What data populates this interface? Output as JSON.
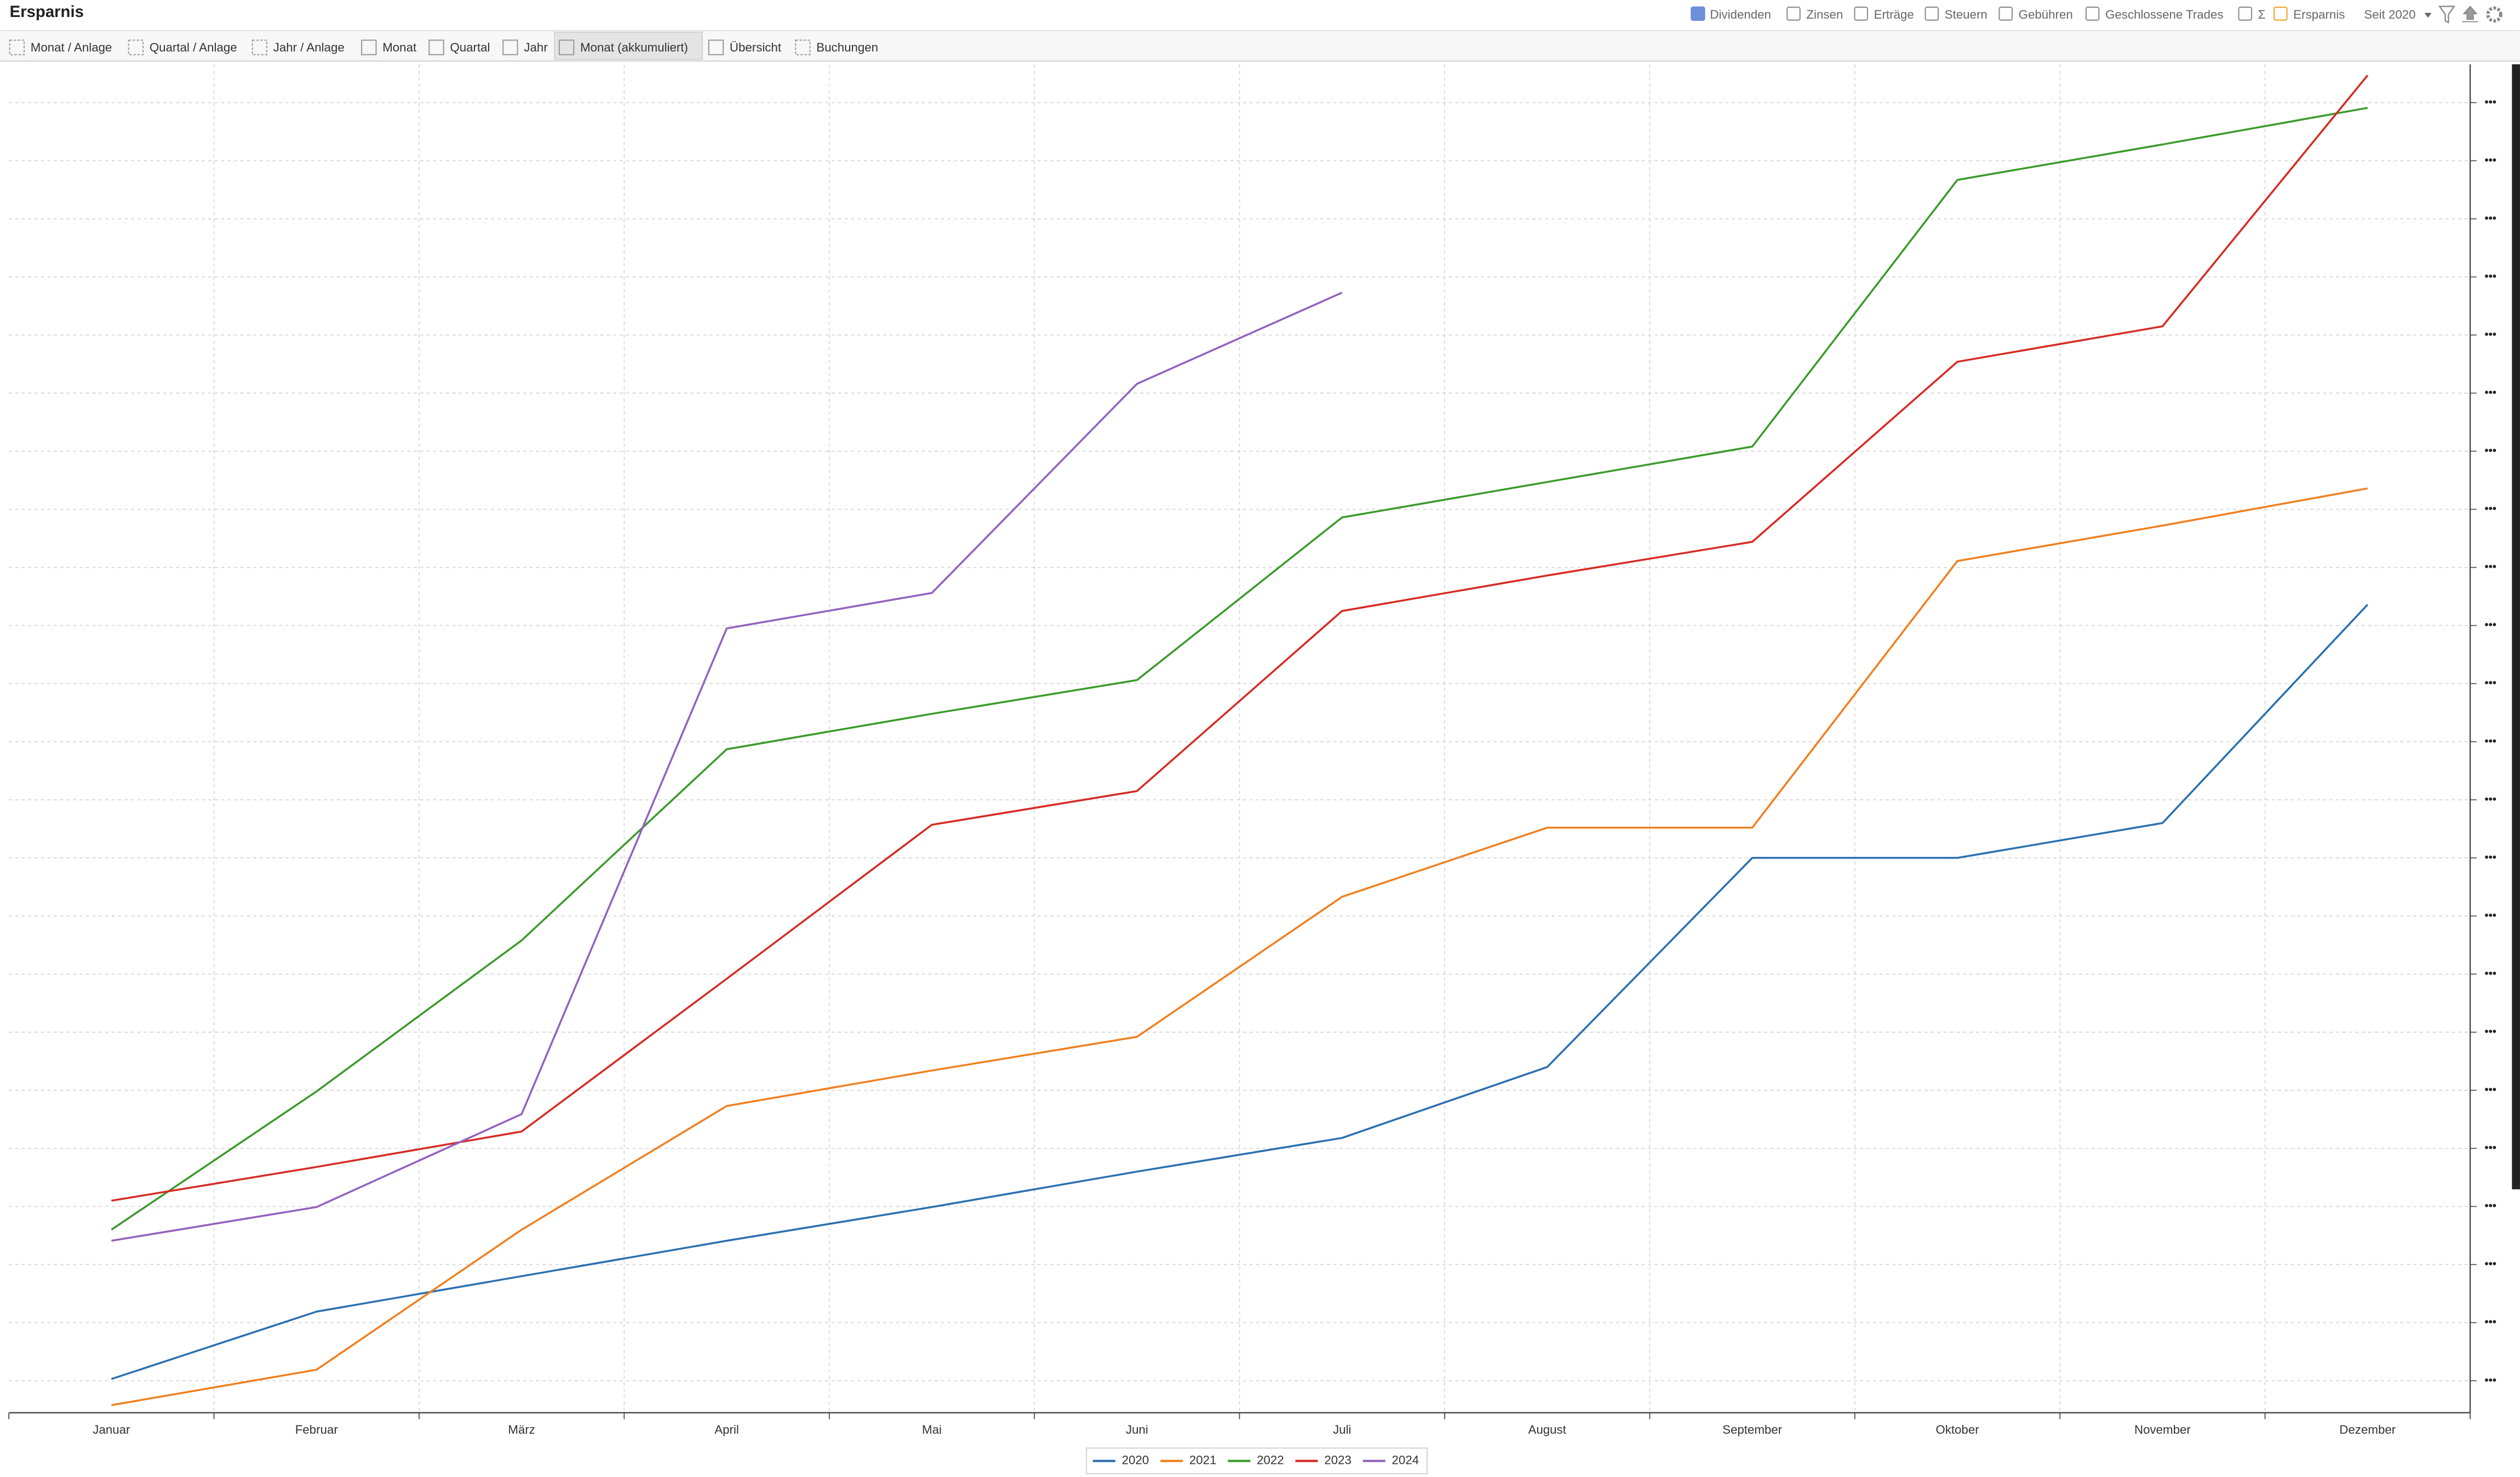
{
  "header": {
    "title": "Ersparnis",
    "filters": [
      "Dividenden",
      "Zinsen",
      "Erträge",
      "Steuern",
      "Gebühren",
      "Geschlossene Trades",
      "Σ",
      "Ersparnis"
    ],
    "period": "Seit 2020"
  },
  "tabs": [
    "Monat / Anlage",
    "Quartal / Anlage",
    "Jahr / Anlage",
    "Monat",
    "Quartal",
    "Jahr",
    "Monat (akkumuliert)",
    "Übersicht",
    "Buchungen"
  ],
  "chart_data": {
    "type": "line",
    "categories": [
      "Januar",
      "Februar",
      "März",
      "April",
      "Mai",
      "Juni",
      "Juli",
      "August",
      "September",
      "Oktober",
      "November",
      "Dezember"
    ],
    "series": [
      {
        "name": "2020",
        "color": "#2a6fb0",
        "values": [
          0.03,
          1.19,
          1.8,
          2.41,
          2.99,
          3.6,
          4.18,
          5.4,
          9.0,
          9.0,
          9.6,
          13.36
        ]
      },
      {
        "name": "2021",
        "color": "#f07f1e",
        "values": [
          -0.42,
          0.19,
          2.6,
          4.73,
          5.34,
          5.92,
          8.33,
          9.52,
          9.52,
          14.11,
          14.72,
          15.36
        ]
      },
      {
        "name": "2022",
        "color": "#3a9a2a",
        "values": [
          2.6,
          4.98,
          7.58,
          10.87,
          11.48,
          12.06,
          14.86,
          15.47,
          16.08,
          20.67,
          21.28,
          21.91
        ]
      },
      {
        "name": "2023",
        "color": "#d62a22",
        "values": [
          3.1,
          3.68,
          4.29,
          6.92,
          9.57,
          10.15,
          13.25,
          13.86,
          14.44,
          17.54,
          18.15,
          22.47
        ]
      },
      {
        "name": "2024",
        "color": "#9162be",
        "values": [
          2.41,
          2.99,
          4.59,
          12.95,
          13.56,
          17.16,
          18.73,
          null,
          null,
          null,
          null,
          null
        ]
      }
    ],
    "ylim": [
      -0.55,
      22.66
    ],
    "yticks": [
      {
        "value": 0,
        "label": "•••"
      },
      {
        "value": 1,
        "label": "•••"
      },
      {
        "value": 2,
        "label": "•••"
      },
      {
        "value": 3,
        "label": "•••"
      },
      {
        "value": 4,
        "label": "•••"
      },
      {
        "value": 5,
        "label": "•••"
      },
      {
        "value": 6,
        "label": "•••"
      },
      {
        "value": 7,
        "label": "•••"
      },
      {
        "value": 8,
        "label": "•••"
      },
      {
        "value": 9,
        "label": "•••"
      },
      {
        "value": 10,
        "label": "•••"
      },
      {
        "value": 11,
        "label": "•••"
      },
      {
        "value": 12,
        "label": "•••"
      },
      {
        "value": 13,
        "label": "•••"
      },
      {
        "value": 14,
        "label": "•••"
      },
      {
        "value": 15,
        "label": "•••"
      },
      {
        "value": 16,
        "label": "•••"
      },
      {
        "value": 17,
        "label": "•••"
      },
      {
        "value": 18,
        "label": "•••"
      },
      {
        "value": 19,
        "label": "•••"
      },
      {
        "value": 20,
        "label": "•••"
      },
      {
        "value": 21,
        "label": "•••"
      },
      {
        "value": 22,
        "label": "•••"
      }
    ],
    "grid": true,
    "legend": "bottom"
  }
}
